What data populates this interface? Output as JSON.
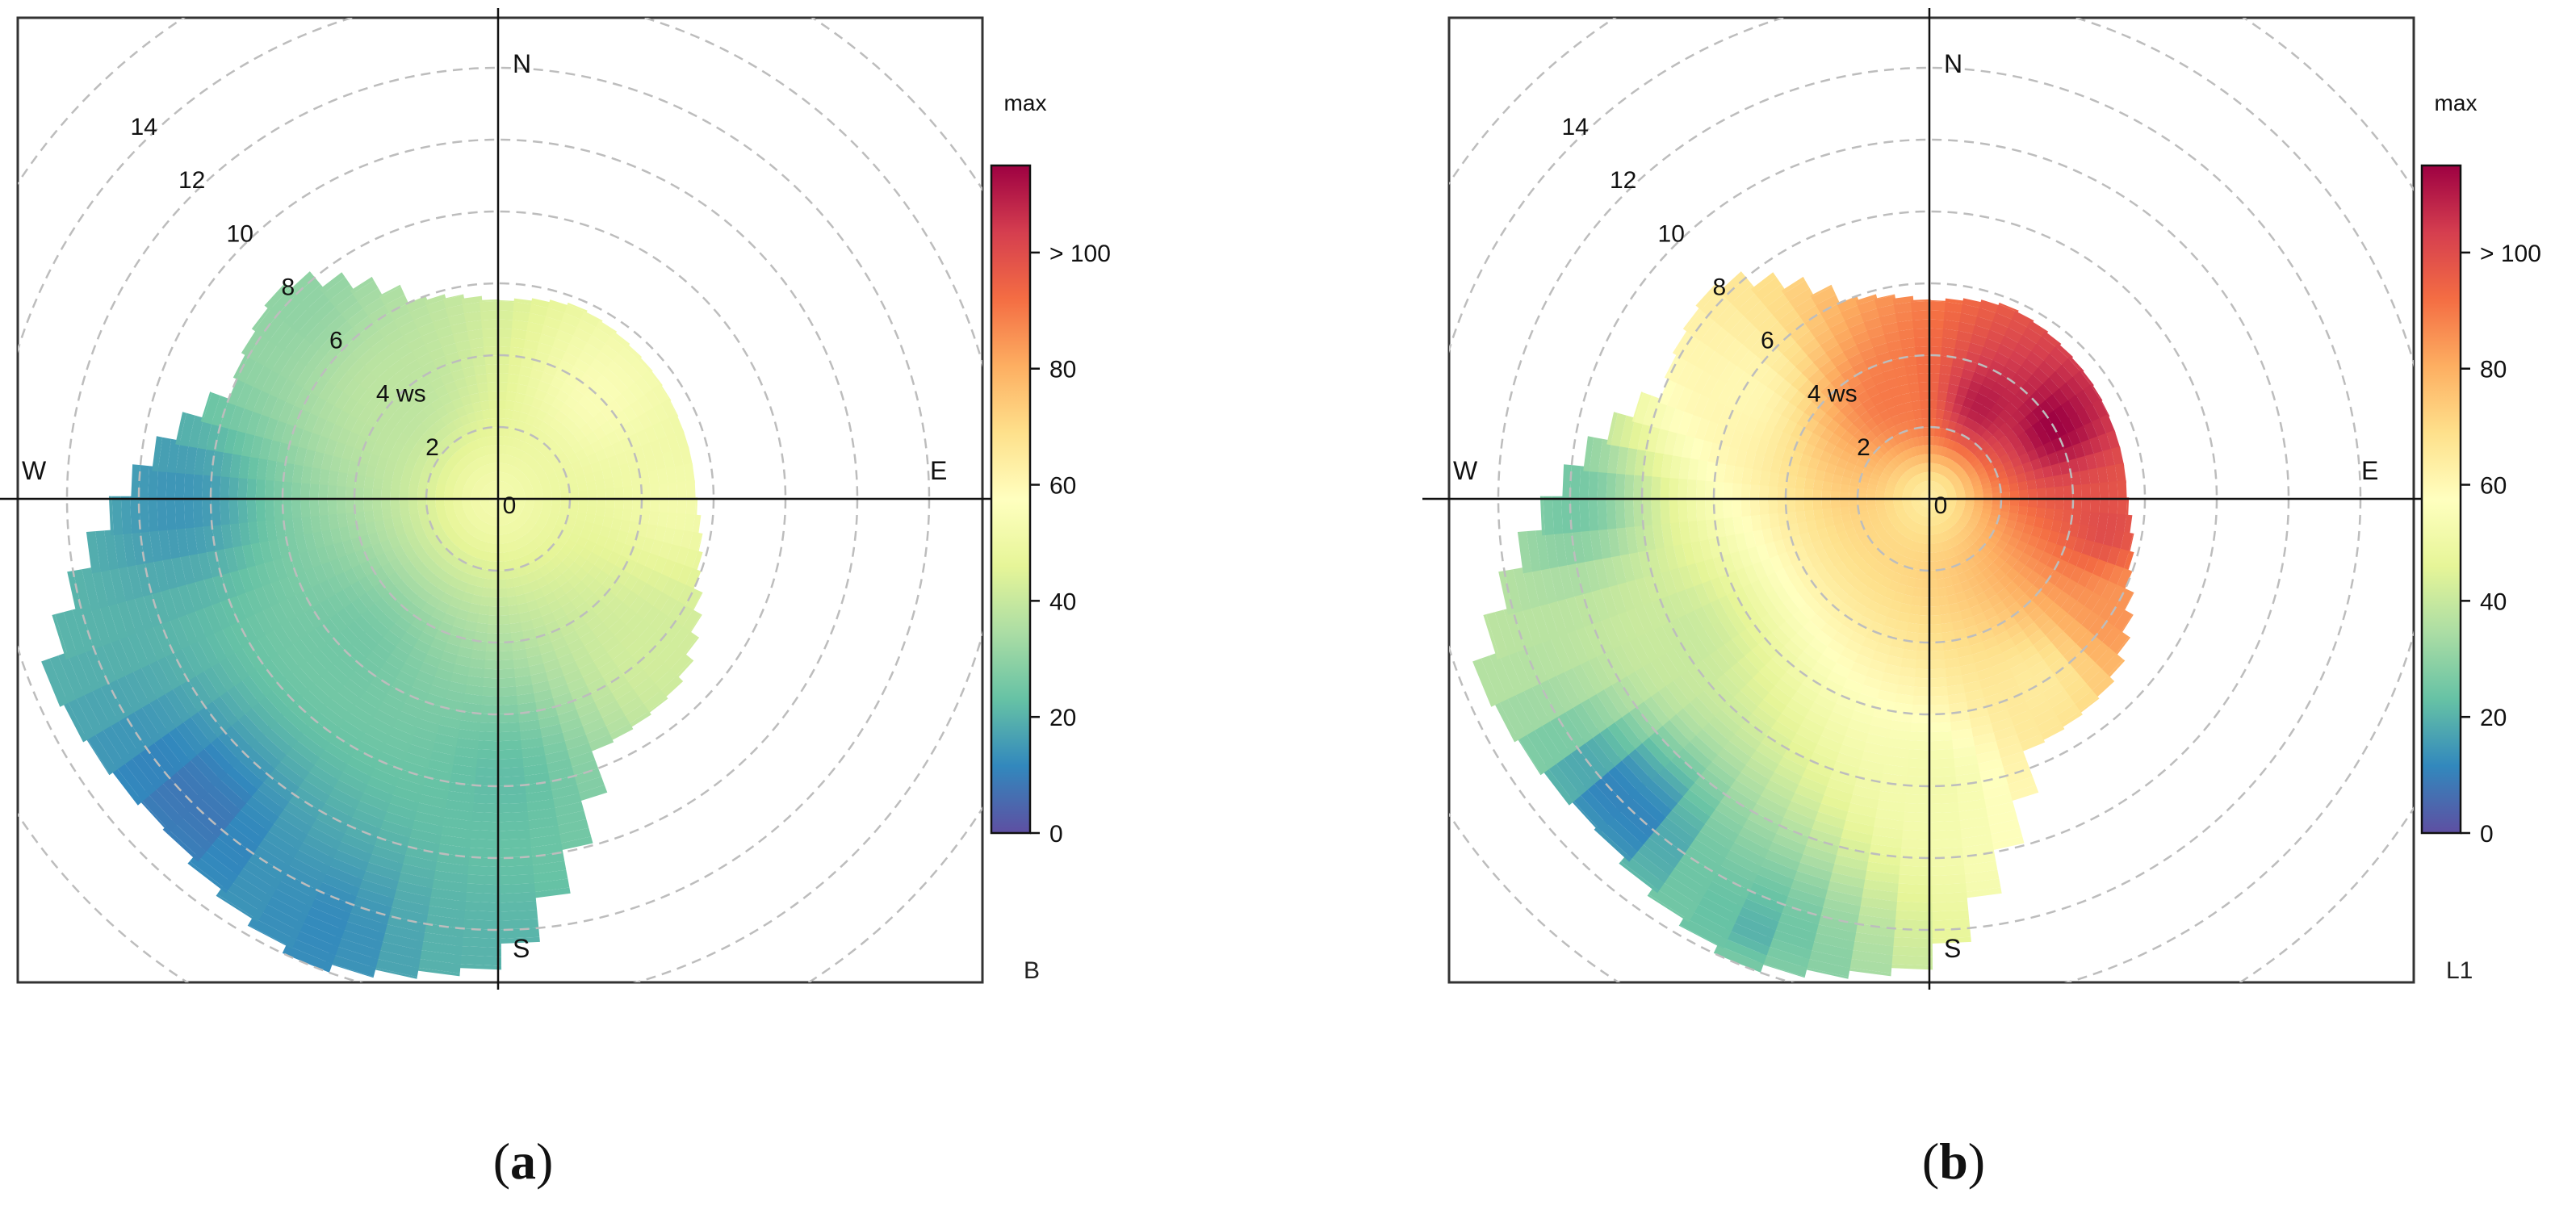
{
  "panels": [
    {
      "caption_letter": "a",
      "caption_open": "(",
      "caption_close": ")",
      "chart_data": {
        "type": "polar-plot",
        "variable_label": "B",
        "scale_title": "max",
        "radial_axis_label": "ws",
        "radial_ticks": [
          0,
          2,
          4,
          6,
          8,
          10,
          12,
          14
        ],
        "compass": [
          "N",
          "E",
          "S",
          "W"
        ],
        "colorbar_ticks": [
          "0",
          "20",
          "40",
          "60",
          "80",
          "> 100"
        ],
        "colorbar_range": [
          0,
          115
        ],
        "colormap": [
          "#5e4fa2",
          "#3288bd",
          "#66c2a5",
          "#abdda4",
          "#e6f598",
          "#ffffbf",
          "#fee08b",
          "#fdae61",
          "#f46d43",
          "#d53e4f",
          "#9e0142"
        ],
        "extent_ws_by_direction_deg": [
          [
            0,
            5.5
          ],
          [
            22.5,
            5.8
          ],
          [
            45,
            5.6
          ],
          [
            67.5,
            5.5
          ],
          [
            90,
            5.5
          ],
          [
            112.5,
            6
          ],
          [
            135,
            7.2
          ],
          [
            157.5,
            7.5
          ],
          [
            180,
            13
          ],
          [
            202.5,
            14
          ],
          [
            225,
            13
          ],
          [
            247.5,
            13.5
          ],
          [
            270,
            10.5
          ],
          [
            292.5,
            8
          ],
          [
            315,
            8.5
          ],
          [
            337.5,
            6
          ]
        ],
        "value_field_anchors": [
          {
            "ws": 0,
            "dir": 0,
            "value": 52
          },
          {
            "ws": 4,
            "dir": 45,
            "value": 55
          },
          {
            "ws": 4,
            "dir": 315,
            "value": 38
          },
          {
            "ws": 5,
            "dir": 90,
            "value": 52
          },
          {
            "ws": 6,
            "dir": 135,
            "value": 42
          },
          {
            "ws": 6,
            "dir": 225,
            "value": 25
          },
          {
            "ws": 8,
            "dir": 180,
            "value": 22
          },
          {
            "ws": 8,
            "dir": 315,
            "value": 30
          },
          {
            "ws": 9,
            "dir": 270,
            "value": 14
          },
          {
            "ws": 12,
            "dir": 225,
            "value": 8
          },
          {
            "ws": 13,
            "dir": 202.5,
            "value": 12
          },
          {
            "ws": 13,
            "dir": 180,
            "value": 20
          }
        ]
      }
    },
    {
      "caption_letter": "b",
      "caption_open": "(",
      "caption_close": ")",
      "chart_data": {
        "type": "polar-plot",
        "variable_label": "L1",
        "scale_title": "max",
        "radial_axis_label": "ws",
        "radial_ticks": [
          0,
          2,
          4,
          6,
          8,
          10,
          12,
          14
        ],
        "compass": [
          "N",
          "E",
          "S",
          "W"
        ],
        "colorbar_ticks": [
          "0",
          "20",
          "40",
          "60",
          "80",
          "> 100"
        ],
        "colorbar_range": [
          0,
          115
        ],
        "colormap": [
          "#5e4fa2",
          "#3288bd",
          "#66c2a5",
          "#abdda4",
          "#e6f598",
          "#ffffbf",
          "#fee08b",
          "#fdae61",
          "#f46d43",
          "#d53e4f",
          "#9e0142"
        ],
        "extent_ws_by_direction_deg": [
          [
            0,
            5.5
          ],
          [
            22.5,
            5.8
          ],
          [
            45,
            5.6
          ],
          [
            67.5,
            5.5
          ],
          [
            90,
            5.5
          ],
          [
            112.5,
            6
          ],
          [
            135,
            7.2
          ],
          [
            157.5,
            7.5
          ],
          [
            180,
            13
          ],
          [
            202.5,
            14
          ],
          [
            225,
            13
          ],
          [
            247.5,
            13.5
          ],
          [
            270,
            10.5
          ],
          [
            292.5,
            8
          ],
          [
            315,
            8.5
          ],
          [
            337.5,
            6
          ]
        ],
        "value_field_anchors": [
          {
            "ws": 0,
            "dir": 0,
            "value": 65
          },
          {
            "ws": 3,
            "dir": 30,
            "value": 110
          },
          {
            "ws": 4,
            "dir": 60,
            "value": 115
          },
          {
            "ws": 3,
            "dir": 340,
            "value": 90
          },
          {
            "ws": 5,
            "dir": 100,
            "value": 100
          },
          {
            "ws": 6,
            "dir": 120,
            "value": 85
          },
          {
            "ws": 6,
            "dir": 150,
            "value": 65
          },
          {
            "ws": 8,
            "dir": 180,
            "value": 52
          },
          {
            "ws": 6,
            "dir": 300,
            "value": 60
          },
          {
            "ws": 8,
            "dir": 240,
            "value": 40
          },
          {
            "ws": 10,
            "dir": 270,
            "value": 25
          },
          {
            "ws": 12,
            "dir": 225,
            "value": 10
          },
          {
            "ws": 13,
            "dir": 202.5,
            "value": 20
          },
          {
            "ws": 14,
            "dir": 200,
            "value": 28
          }
        ]
      }
    }
  ]
}
